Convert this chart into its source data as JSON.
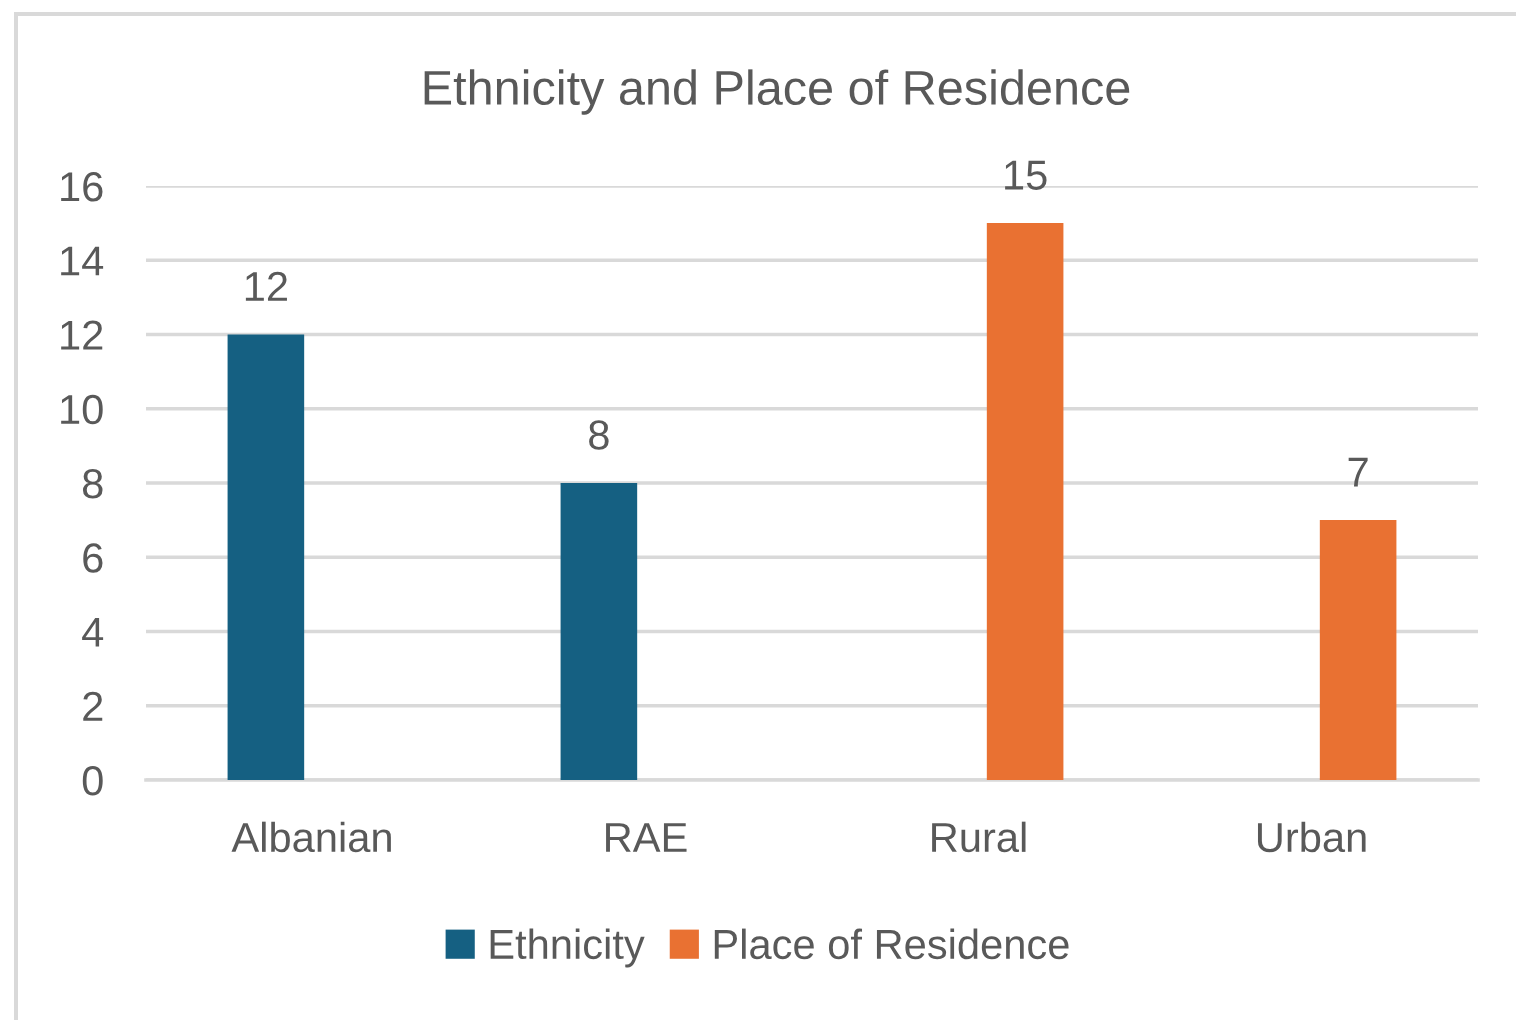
{
  "chart_data": {
    "type": "bar",
    "title": "Ethnicity and Place of Residence",
    "categories": [
      "Albanian",
      "RAE",
      "Rural",
      "Urban"
    ],
    "series": [
      {
        "name": "Ethnicity",
        "color": "#156082",
        "values": [
          12,
          8,
          null,
          null
        ]
      },
      {
        "name": "Place of Residence",
        "color": "#e97132",
        "values": [
          null,
          null,
          15,
          7
        ]
      }
    ],
    "ylim": [
      0,
      16
    ],
    "yticks": [
      0,
      2,
      4,
      6,
      8,
      10,
      12,
      14,
      16
    ],
    "grid": "y",
    "legend": "bottom",
    "data_labels": true
  }
}
